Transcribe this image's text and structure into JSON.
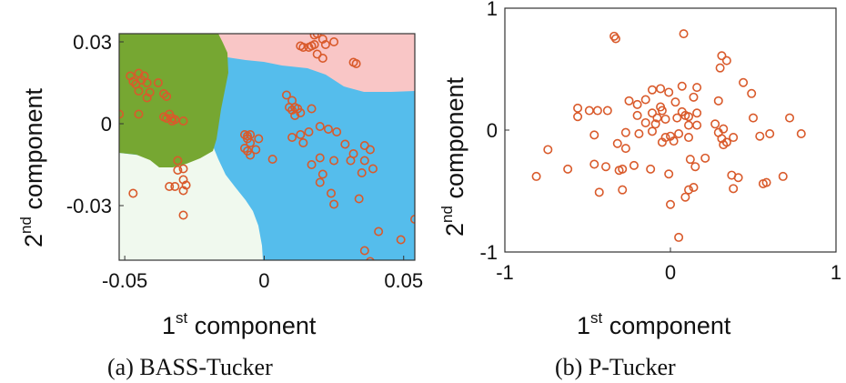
{
  "colors": {
    "points": "#d95a2b",
    "region_green": "#76a732",
    "region_pink": "#f9c6c6",
    "region_blue": "#55bdec",
    "region_light": "#f0f9ee"
  },
  "chart_data": [
    {
      "type": "scatter",
      "caption": "(a) BASS-Tucker",
      "xlabel_main": "1",
      "xlabel_sup": "st",
      "xlabel_rest": " component",
      "ylabel_main": "2",
      "ylabel_sup": "nd",
      "ylabel_rest": " component",
      "xlim": [
        -0.052,
        0.054
      ],
      "ylim": [
        -0.05,
        0.033
      ],
      "xticks": [
        -0.05,
        0,
        0.05
      ],
      "xtick_labels": [
        "-0.05",
        "0",
        "0.05"
      ],
      "yticks": [
        -0.03,
        0,
        0.03
      ],
      "ytick_labels": [
        "-0.03",
        "0",
        "0.03"
      ],
      "background": "decision regions (green, pink, blue, light green)",
      "points": [
        [
          -0.045,
          0.0185
        ],
        [
          -0.043,
          0.0175
        ],
        [
          -0.044,
          0.016
        ],
        [
          -0.042,
          0.015
        ],
        [
          -0.048,
          0.0175
        ],
        [
          -0.047,
          0.0155
        ],
        [
          -0.046,
          0.0145
        ],
        [
          -0.045,
          0.012
        ],
        [
          -0.042,
          0.0095
        ],
        [
          -0.038,
          0.015
        ],
        [
          -0.041,
          0.0115
        ],
        [
          -0.036,
          0.011
        ],
        [
          -0.035,
          0.01
        ],
        [
          -0.034,
          0.0035
        ],
        [
          -0.036,
          0.0025
        ],
        [
          -0.035,
          0.002
        ],
        [
          -0.033,
          0.002
        ],
        [
          -0.032,
          0.0015
        ],
        [
          -0.033,
          0.001
        ],
        [
          -0.029,
          0.001
        ],
        [
          -0.052,
          0.0035
        ],
        [
          -0.045,
          0.0035
        ],
        [
          -0.031,
          -0.0135
        ],
        [
          -0.031,
          -0.017
        ],
        [
          -0.029,
          -0.0165
        ],
        [
          -0.034,
          -0.023
        ],
        [
          -0.032,
          -0.023
        ],
        [
          -0.029,
          -0.0205
        ],
        [
          -0.028,
          -0.0225
        ],
        [
          -0.029,
          -0.0245
        ],
        [
          -0.047,
          -0.0255
        ],
        [
          -0.029,
          -0.0335
        ],
        [
          0.016,
          0.028
        ],
        [
          0.018,
          0.029
        ],
        [
          0.018,
          0.0325
        ],
        [
          0.019,
          0.033
        ],
        [
          0.021,
          0.031
        ],
        [
          0.022,
          0.029
        ],
        [
          0.013,
          0.0285
        ],
        [
          0.014,
          0.028
        ],
        [
          0.017,
          0.0285
        ],
        [
          0.025,
          0.03
        ],
        [
          0.019,
          0.0255
        ],
        [
          0.021,
          0.024
        ],
        [
          0.032,
          0.0225
        ],
        [
          0.033,
          0.022
        ],
        [
          0.008,
          0.0105
        ],
        [
          0.01,
          0.0085
        ],
        [
          0.009,
          0.006
        ],
        [
          0.011,
          0.006
        ],
        [
          0.01,
          0.005
        ],
        [
          0.012,
          0.0055
        ],
        [
          0.011,
          0.003
        ],
        [
          0.013,
          0.004
        ],
        [
          0.017,
          0.0055
        ],
        [
          -0.007,
          -0.004
        ],
        [
          -0.006,
          -0.0045
        ],
        [
          -0.005,
          -0.004
        ],
        [
          -0.006,
          -0.0055
        ],
        [
          -0.005,
          -0.007
        ],
        [
          -0.006,
          -0.01
        ],
        [
          -0.003,
          -0.0095
        ],
        [
          -0.007,
          -0.009
        ],
        [
          -0.002,
          -0.0055
        ],
        [
          -0.005,
          -0.0115
        ],
        [
          0.003,
          -0.013
        ],
        [
          0.01,
          -0.005
        ],
        [
          0.013,
          -0.004
        ],
        [
          0.014,
          -0.007
        ],
        [
          0.016,
          -0.003
        ],
        [
          0.02,
          -0.001
        ],
        [
          0.023,
          -0.002
        ],
        [
          0.026,
          -0.003
        ],
        [
          0.029,
          -0.0075
        ],
        [
          0.032,
          -0.011
        ],
        [
          0.036,
          -0.008
        ],
        [
          0.038,
          -0.0095
        ],
        [
          0.031,
          -0.0135
        ],
        [
          0.036,
          -0.0135
        ],
        [
          0.039,
          -0.0165
        ],
        [
          0.035,
          -0.018
        ],
        [
          0.025,
          -0.0135
        ],
        [
          0.02,
          -0.0125
        ],
        [
          0.017,
          -0.015
        ],
        [
          0.021,
          -0.0185
        ],
        [
          0.02,
          -0.0215
        ],
        [
          0.024,
          -0.0255
        ],
        [
          0.025,
          -0.0295
        ],
        [
          0.034,
          -0.0275
        ],
        [
          0.041,
          -0.0395
        ],
        [
          0.036,
          -0.0465
        ],
        [
          0.049,
          -0.0425
        ],
        [
          0.054,
          -0.035
        ],
        [
          0.038,
          -0.0505
        ]
      ]
    },
    {
      "type": "scatter",
      "caption": "(b) P-Tucker",
      "xlabel_main": "1",
      "xlabel_sup": "st",
      "xlabel_rest": " component",
      "ylabel_main": "2",
      "ylabel_sup": "nd",
      "ylabel_rest": " component",
      "xlim": [
        -1,
        1
      ],
      "ylim": [
        -1,
        1
      ],
      "xticks": [
        -1,
        0,
        1
      ],
      "xtick_labels": [
        "-1",
        "0",
        "1"
      ],
      "yticks": [
        -1,
        0,
        1
      ],
      "ytick_labels": [
        "-1",
        "0",
        "1"
      ],
      "points": [
        [
          -0.34,
          0.77
        ],
        [
          -0.33,
          0.75
        ],
        [
          0.08,
          0.79
        ],
        [
          0.31,
          0.61
        ],
        [
          0.34,
          0.57
        ],
        [
          0.3,
          0.51
        ],
        [
          0.44,
          0.39
        ],
        [
          0.49,
          0.3
        ],
        [
          -0.06,
          0.34
        ],
        [
          0.07,
          0.36
        ],
        [
          0.16,
          0.35
        ],
        [
          0.29,
          0.24
        ],
        [
          0.14,
          0.27
        ],
        [
          -0.11,
          0.33
        ],
        [
          -0.25,
          0.24
        ],
        [
          -0.15,
          0.25
        ],
        [
          -0.2,
          0.21
        ],
        [
          -0.01,
          0.31
        ],
        [
          -0.06,
          0.19
        ],
        [
          0.03,
          0.23
        ],
        [
          -0.56,
          0.18
        ],
        [
          -0.49,
          0.16
        ],
        [
          -0.44,
          0.16
        ],
        [
          -0.38,
          0.16
        ],
        [
          -0.2,
          0.12
        ],
        [
          -0.56,
          0.11
        ],
        [
          -0.05,
          0.16
        ],
        [
          0.07,
          0.15
        ],
        [
          0.09,
          0.12
        ],
        [
          -0.11,
          0.14
        ],
        [
          -0.08,
          0.1
        ],
        [
          -0.03,
          0.09
        ],
        [
          0.04,
          0.1
        ],
        [
          0.11,
          0.11
        ],
        [
          0.16,
          0.14
        ],
        [
          -0.15,
          0.06
        ],
        [
          -0.09,
          0.05
        ],
        [
          0.11,
          0.04
        ],
        [
          0.16,
          0.04
        ],
        [
          0.27,
          0.05
        ],
        [
          0.5,
          0.1
        ],
        [
          0.72,
          0.1
        ],
        [
          0.79,
          -0.03
        ],
        [
          0.6,
          -0.03
        ],
        [
          0.54,
          -0.05
        ],
        [
          0.38,
          -0.06
        ],
        [
          0.32,
          0.01
        ],
        [
          0.29,
          -0.02
        ],
        [
          0.31,
          -0.07
        ],
        [
          0.34,
          -0.1
        ],
        [
          0.32,
          -0.12
        ],
        [
          -0.27,
          -0.02
        ],
        [
          -0.19,
          -0.03
        ],
        [
          -0.11,
          -0.01
        ],
        [
          -0.03,
          -0.06
        ],
        [
          0.0,
          -0.05
        ],
        [
          0.05,
          -0.03
        ],
        [
          -0.46,
          -0.04
        ],
        [
          -0.32,
          -0.11
        ],
        [
          -0.27,
          -0.15
        ],
        [
          -0.05,
          -0.1
        ],
        [
          0.02,
          -0.09
        ],
        [
          0.11,
          -0.06
        ],
        [
          -0.74,
          -0.16
        ],
        [
          -0.46,
          -0.28
        ],
        [
          -0.39,
          -0.3
        ],
        [
          -0.31,
          -0.33
        ],
        [
          -0.29,
          -0.32
        ],
        [
          -0.62,
          -0.32
        ],
        [
          -0.81,
          -0.38
        ],
        [
          -0.22,
          -0.29
        ],
        [
          -0.12,
          -0.32
        ],
        [
          -0.01,
          -0.36
        ],
        [
          0.12,
          -0.24
        ],
        [
          0.15,
          -0.3
        ],
        [
          0.21,
          -0.23
        ],
        [
          0.37,
          -0.37
        ],
        [
          0.41,
          -0.39
        ],
        [
          0.56,
          -0.44
        ],
        [
          0.58,
          -0.43
        ],
        [
          0.68,
          -0.38
        ],
        [
          0.38,
          -0.48
        ],
        [
          -0.43,
          -0.51
        ],
        [
          -0.29,
          -0.49
        ],
        [
          0.11,
          -0.49
        ],
        [
          0.14,
          -0.47
        ],
        [
          0.09,
          -0.55
        ],
        [
          0.0,
          -0.61
        ],
        [
          0.05,
          -0.88
        ]
      ]
    }
  ]
}
